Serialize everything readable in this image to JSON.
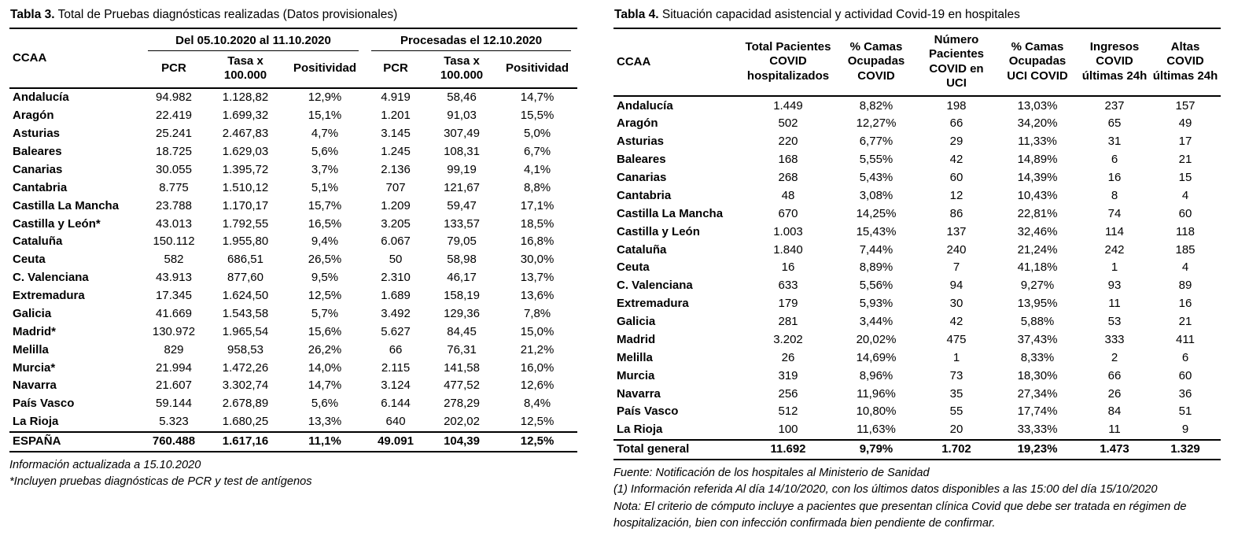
{
  "table3": {
    "title_bold": "Tabla 3.",
    "title_rest": " Total de Pruebas diagnósticas realizadas (Datos provisionales)",
    "group_headers": [
      "Del 05.10.2020 al 11.10.2020",
      "Procesadas el 12.10.2020"
    ],
    "col_headers": [
      "CCAA",
      "PCR",
      "Tasa x 100.000",
      "Positividad",
      "PCR",
      "Tasa x 100.000",
      "Positividad"
    ],
    "rows": [
      [
        "Andalucía",
        "94.982",
        "1.128,82",
        "12,9%",
        "4.919",
        "58,46",
        "14,7%"
      ],
      [
        "Aragón",
        "22.419",
        "1.699,32",
        "15,1%",
        "1.201",
        "91,03",
        "15,5%"
      ],
      [
        "Asturias",
        "25.241",
        "2.467,83",
        "4,7%",
        "3.145",
        "307,49",
        "5,0%"
      ],
      [
        "Baleares",
        "18.725",
        "1.629,03",
        "5,6%",
        "1.245",
        "108,31",
        "6,7%"
      ],
      [
        "Canarias",
        "30.055",
        "1.395,72",
        "3,7%",
        "2.136",
        "99,19",
        "4,1%"
      ],
      [
        "Cantabria",
        "8.775",
        "1.510,12",
        "5,1%",
        "707",
        "121,67",
        "8,8%"
      ],
      [
        "Castilla La Mancha",
        "23.788",
        "1.170,17",
        "15,7%",
        "1.209",
        "59,47",
        "17,1%"
      ],
      [
        "Castilla y León*",
        "43.013",
        "1.792,55",
        "16,5%",
        "3.205",
        "133,57",
        "18,5%"
      ],
      [
        "Cataluña",
        "150.112",
        "1.955,80",
        "9,4%",
        "6.067",
        "79,05",
        "16,8%"
      ],
      [
        "Ceuta",
        "582",
        "686,51",
        "26,5%",
        "50",
        "58,98",
        "30,0%"
      ],
      [
        "C. Valenciana",
        "43.913",
        "877,60",
        "9,5%",
        "2.310",
        "46,17",
        "13,7%"
      ],
      [
        "Extremadura",
        "17.345",
        "1.624,50",
        "12,5%",
        "1.689",
        "158,19",
        "13,6%"
      ],
      [
        "Galicia",
        "41.669",
        "1.543,58",
        "5,7%",
        "3.492",
        "129,36",
        "7,8%"
      ],
      [
        "Madrid*",
        "130.972",
        "1.965,54",
        "15,6%",
        "5.627",
        "84,45",
        "15,0%"
      ],
      [
        "Melilla",
        "829",
        "958,53",
        "26,2%",
        "66",
        "76,31",
        "21,2%"
      ],
      [
        "Murcia*",
        "21.994",
        "1.472,26",
        "14,0%",
        "2.115",
        "141,58",
        "16,0%"
      ],
      [
        "Navarra",
        "21.607",
        "3.302,74",
        "14,7%",
        "3.124",
        "477,52",
        "12,6%"
      ],
      [
        "País Vasco",
        "59.144",
        "2.678,89",
        "5,6%",
        "6.144",
        "278,29",
        "8,4%"
      ],
      [
        "La Rioja",
        "5.323",
        "1.680,25",
        "13,3%",
        "640",
        "202,02",
        "12,5%"
      ]
    ],
    "total_row": [
      "ESPAÑA",
      "760.488",
      "1.617,16",
      "11,1%",
      "49.091",
      "104,39",
      "12,5%"
    ],
    "footnotes": [
      "Información actualizada a 15.10.2020",
      "*Incluyen pruebas diagnósticas de PCR y test de antígenos"
    ]
  },
  "table4": {
    "title_bold": "Tabla 4.",
    "title_rest": " Situación capacidad asistencial y actividad Covid-19 en  hospitales",
    "col_headers": [
      "CCAA",
      "Total Pacientes COVID hospitalizados",
      "% Camas Ocupadas COVID",
      "Número Pacientes COVID en UCI",
      "% Camas Ocupadas UCI COVID",
      "Ingresos COVID últimas 24h",
      "Altas COVID últimas 24h"
    ],
    "rows": [
      [
        "Andalucía",
        "1.449",
        "8,82%",
        "198",
        "13,03%",
        "237",
        "157"
      ],
      [
        "Aragón",
        "502",
        "12,27%",
        "66",
        "34,20%",
        "65",
        "49"
      ],
      [
        "Asturias",
        "220",
        "6,77%",
        "29",
        "11,33%",
        "31",
        "17"
      ],
      [
        "Baleares",
        "168",
        "5,55%",
        "42",
        "14,89%",
        "6",
        "21"
      ],
      [
        "Canarias",
        "268",
        "5,43%",
        "60",
        "14,39%",
        "16",
        "15"
      ],
      [
        "Cantabria",
        "48",
        "3,08%",
        "12",
        "10,43%",
        "8",
        "4"
      ],
      [
        "Castilla La Mancha",
        "670",
        "14,25%",
        "86",
        "22,81%",
        "74",
        "60"
      ],
      [
        "Castilla y León",
        "1.003",
        "15,43%",
        "137",
        "32,46%",
        "114",
        "118"
      ],
      [
        "Cataluña",
        "1.840",
        "7,44%",
        "240",
        "21,24%",
        "242",
        "185"
      ],
      [
        "Ceuta",
        "16",
        "8,89%",
        "7",
        "41,18%",
        "1",
        "4"
      ],
      [
        "C. Valenciana",
        "633",
        "5,56%",
        "94",
        "9,27%",
        "93",
        "89"
      ],
      [
        "Extremadura",
        "179",
        "5,93%",
        "30",
        "13,95%",
        "11",
        "16"
      ],
      [
        "Galicia",
        "281",
        "3,44%",
        "42",
        "5,88%",
        "53",
        "21"
      ],
      [
        "Madrid",
        "3.202",
        "20,02%",
        "475",
        "37,43%",
        "333",
        "411"
      ],
      [
        "Melilla",
        "26",
        "14,69%",
        "1",
        "8,33%",
        "2",
        "6"
      ],
      [
        "Murcia",
        "319",
        "8,96%",
        "73",
        "18,30%",
        "66",
        "60"
      ],
      [
        "Navarra",
        "256",
        "11,96%",
        "35",
        "27,34%",
        "26",
        "36"
      ],
      [
        "País Vasco",
        "512",
        "10,80%",
        "55",
        "17,74%",
        "84",
        "51"
      ],
      [
        "La Rioja",
        "100",
        "11,63%",
        "20",
        "33,33%",
        "11",
        "9"
      ]
    ],
    "total_row": [
      "Total general",
      "11.692",
      "9,79%",
      "1.702",
      "19,23%",
      "1.473",
      "1.329"
    ],
    "footnotes": [
      "Fuente: Notificación de los hospitales al Ministerio de Sanidad",
      "(1) Información referida Al día 14/10/2020, con los últimos datos disponibles a las 15:00 del día 15/10/2020",
      "Nota:  El criterio de cómputo incluye a pacientes que presentan clínica Covid que debe ser tratada en régimen de hospitalización, bien con infección confirmada bien pendiente de confirmar."
    ]
  }
}
